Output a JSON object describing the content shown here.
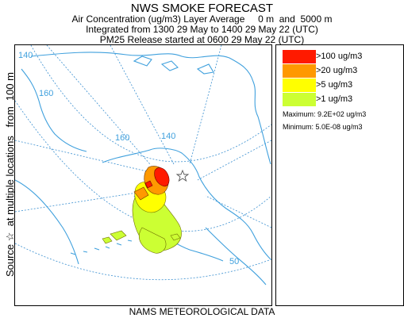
{
  "header": {
    "title": "NWS SMOKE FORECAST",
    "line1": "Air Concentration (ug/m3) Layer Average     0 m  and  5000 m",
    "line2": "Integrated from 1300 29 May to 1400 29 May 22 (UTC)",
    "line3": "PM25 Release started at 0600 29 May 22 (UTC)"
  },
  "side_label": "Source ☆  at multiple locations   from  100 m",
  "footer": "NAMS METEOROLOGICAL DATA",
  "map": {
    "graticule_labels": [
      "140",
      "160",
      "160",
      "140",
      "50"
    ]
  },
  "legend": {
    "items": [
      {
        "label": ">100 ug/m3",
        "color": "#ff1a00"
      },
      {
        "label": ">20 ug/m3",
        "color": "#ff9900"
      },
      {
        "label": ">5 ug/m3",
        "color": "#ffff00"
      },
      {
        "label": ">1 ug/m3",
        "color": "#ccff33"
      }
    ],
    "maximum": "Maximum: 9.2E+02 ug/m3",
    "minimum": "Minimum: 5.0E-08 ug/m3"
  },
  "colors": {
    "coastline": "#3fa0dd",
    "graticule": "#3a8fd0",
    "source_star": "#555555"
  }
}
